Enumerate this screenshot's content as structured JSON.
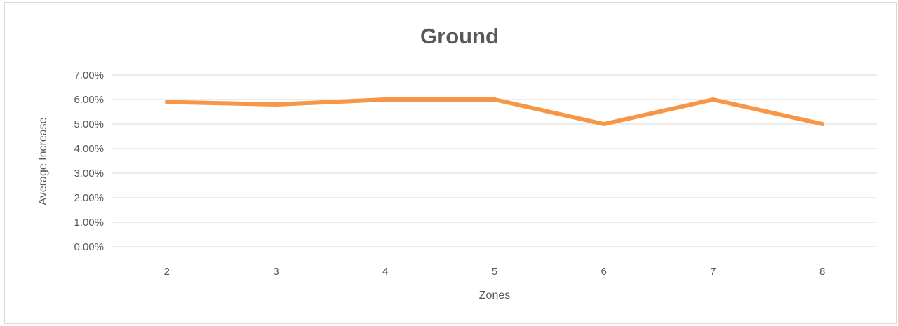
{
  "chart_data": {
    "type": "line",
    "title": "Ground",
    "xlabel": "Zones",
    "ylabel": "Average Increase",
    "categories": [
      "2",
      "3",
      "4",
      "5",
      "6",
      "7",
      "8"
    ],
    "series": [
      {
        "values": [
          0.059,
          0.058,
          0.06,
          0.06,
          0.05,
          0.06,
          0.05
        ],
        "color": "#f79646"
      }
    ],
    "ylim": [
      0,
      0.07
    ],
    "yticks": [
      0,
      0.01,
      0.02,
      0.03,
      0.04,
      0.05,
      0.06,
      0.07
    ],
    "ytick_labels": [
      "0.00%",
      "1.00%",
      "2.00%",
      "3.00%",
      "4.00%",
      "5.00%",
      "6.00%",
      "7.00%"
    ],
    "grid": true,
    "legend": "none"
  },
  "colors": {
    "grid": "#d9d9d9",
    "text": "#595959",
    "series": "#f79646"
  }
}
